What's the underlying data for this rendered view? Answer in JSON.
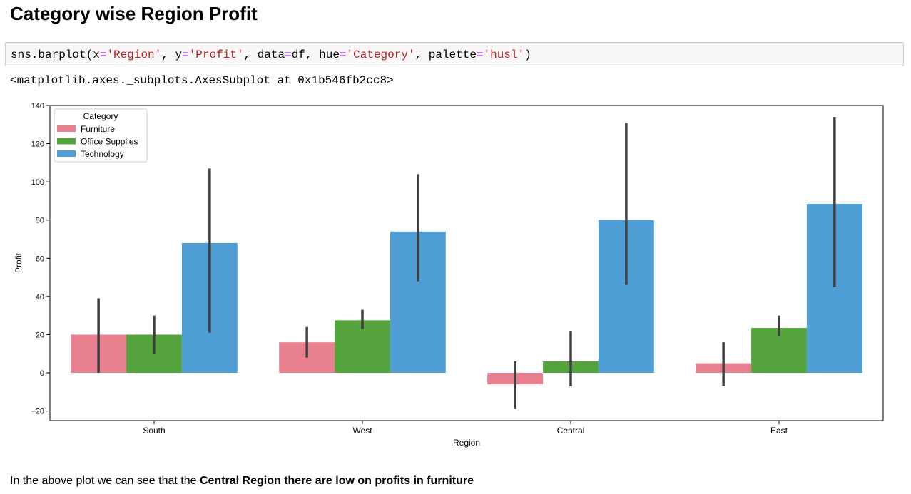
{
  "notebook": {
    "heading": "Category wise Region Profit",
    "code": {
      "fn": "sns.barplot(",
      "x_kw": "x",
      "x_val": "'Region'",
      "y_kw": "y",
      "y_val": "'Profit'",
      "data_kw": "data",
      "data_val": "df",
      "hue_kw": "hue",
      "hue_val": "'Category'",
      "palette_kw": "palette",
      "palette_val": "'husl'",
      "close": ")",
      "eq": "=",
      "sep": ", "
    },
    "output_repr": "<matplotlib.axes._subplots.AxesSubplot at 0x1b546fb2cc8>",
    "markdown": {
      "prefix": "In the above plot we can see that the ",
      "bold": "Central Region there are low on profits in furniture"
    }
  },
  "chart_data": {
    "type": "bar",
    "xlabel": "Region",
    "ylabel": "Profit",
    "ylim": [
      -25,
      140
    ],
    "yticks": [
      -20,
      0,
      20,
      40,
      60,
      80,
      100,
      120,
      140
    ],
    "ytick_labels": [
      "−20",
      "0",
      "20",
      "40",
      "60",
      "80",
      "100",
      "120",
      "140"
    ],
    "categories": [
      "South",
      "West",
      "Central",
      "East"
    ],
    "legend_title": "Category",
    "legend_position": "upper-left",
    "grid": false,
    "series": [
      {
        "name": "Furniture",
        "color": "#e8808f",
        "values": [
          20,
          16,
          6,
          5
        ],
        "values_sign": [
          1,
          1,
          -1,
          1
        ],
        "ci": [
          [
            0,
            39
          ],
          [
            8,
            24
          ],
          [
            -19,
            6
          ],
          [
            -7,
            16
          ]
        ]
      },
      {
        "name": "Office Supplies",
        "color": "#56a43e",
        "values": [
          20,
          27.5,
          6,
          23.5
        ],
        "values_sign": [
          1,
          1,
          1,
          1
        ],
        "ci": [
          [
            10,
            30
          ],
          [
            23,
            33
          ],
          [
            -7,
            22
          ],
          [
            19,
            30
          ]
        ]
      },
      {
        "name": "Technology",
        "color": "#509ed6",
        "values": [
          68,
          74,
          80,
          88.5
        ],
        "values_sign": [
          1,
          1,
          1,
          1
        ],
        "ci": [
          [
            21,
            107
          ],
          [
            48,
            104
          ],
          [
            46,
            131
          ],
          [
            45,
            134
          ]
        ]
      }
    ]
  }
}
